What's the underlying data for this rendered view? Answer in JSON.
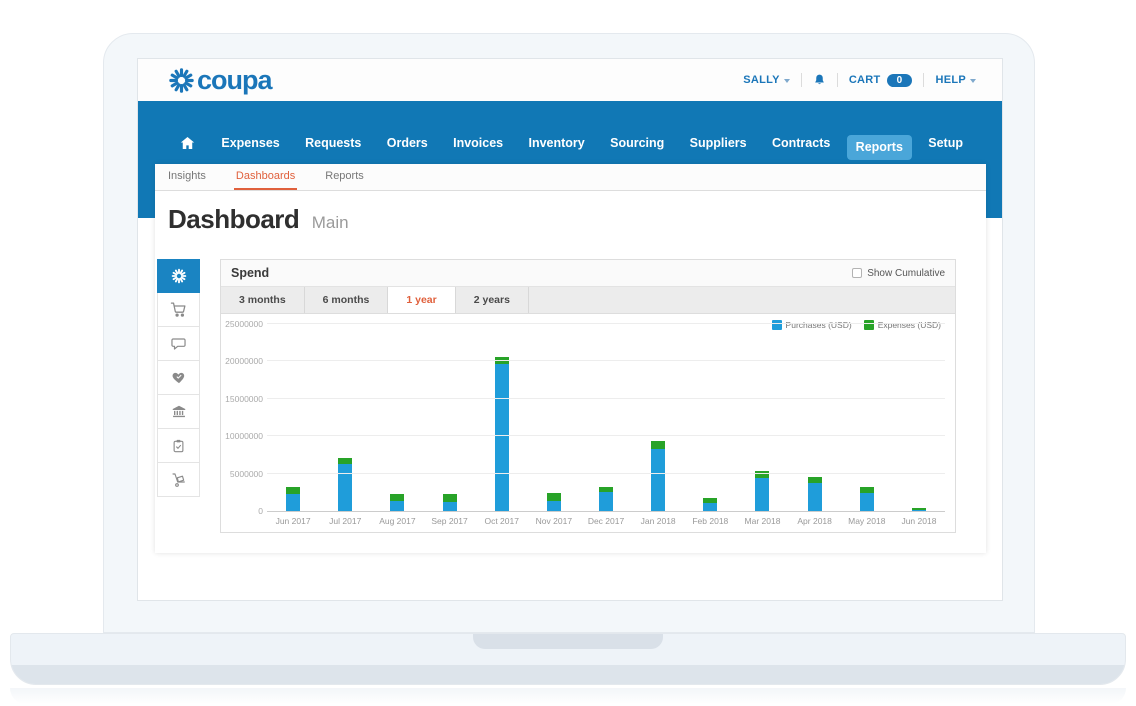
{
  "ui_colors": {
    "brand_blue": "#1b76b9",
    "nav_blue": "#1178b5",
    "nav_active_blue": "#4aa6d9",
    "accent_orange": "#e0603c"
  },
  "header": {
    "logo_text": "coupa",
    "user_label": "SALLY",
    "cart_label": "CART",
    "cart_count": "0",
    "help_label": "HELP"
  },
  "nav": {
    "items": [
      {
        "name": "home",
        "icon": "home-icon",
        "label": ""
      },
      {
        "label": "Expenses"
      },
      {
        "label": "Requests"
      },
      {
        "label": "Orders"
      },
      {
        "label": "Invoices"
      },
      {
        "label": "Inventory"
      },
      {
        "label": "Sourcing"
      },
      {
        "label": "Suppliers"
      },
      {
        "label": "Contracts"
      },
      {
        "label": "Reports",
        "active": true
      },
      {
        "label": "Setup"
      }
    ]
  },
  "subnav": {
    "items": [
      {
        "label": "Insights"
      },
      {
        "label": "Dashboards",
        "active": true
      },
      {
        "label": "Reports"
      }
    ]
  },
  "page": {
    "title": "Dashboard",
    "subtitle": "Main"
  },
  "sidebar": {
    "items": [
      {
        "icon": "sunburst-icon",
        "active": true
      },
      {
        "icon": "cart-icon"
      },
      {
        "icon": "speech-bubble-icon"
      },
      {
        "icon": "heart-icon"
      },
      {
        "icon": "bank-icon"
      },
      {
        "icon": "clipboard-check-icon"
      },
      {
        "icon": "hand-truck-icon"
      }
    ]
  },
  "panel": {
    "title": "Spend",
    "checkbox_label": "Show Cumulative",
    "checkbox_checked": false,
    "range_tabs": [
      {
        "label": "3 months"
      },
      {
        "label": "6 months"
      },
      {
        "label": "1 year",
        "active": true
      },
      {
        "label": "2 years"
      }
    ]
  },
  "chart_data": {
    "type": "bar",
    "stacked": true,
    "grid": true,
    "legend_position": "top-right",
    "title": "Spend",
    "xlabel": "",
    "ylabel": "",
    "ylim": [
      0,
      25000000
    ],
    "y_ticks": [
      0,
      5000000,
      10000000,
      15000000,
      20000000,
      25000000
    ],
    "y_tick_labels": [
      "0",
      "5000000",
      "10000000",
      "15000000",
      "20000000",
      "25000000"
    ],
    "categories": [
      "Jun 2017",
      "Jul 2017",
      "Aug 2017",
      "Sep 2017",
      "Oct 2017",
      "Nov 2017",
      "Dec 2017",
      "Jan 2018",
      "Feb 2018",
      "Mar 2018",
      "Apr 2018",
      "May 2018",
      "Jun 2018"
    ],
    "series": [
      {
        "name": "Purchases (USD)",
        "color": "#1f9dda",
        "values": [
          2300000,
          6300000,
          1400000,
          1250000,
          19600000,
          1350000,
          2550000,
          8300000,
          1050000,
          4400000,
          3800000,
          2400000,
          50000
        ]
      },
      {
        "name": "Expenses (USD)",
        "color": "#28a328",
        "values": [
          900000,
          800000,
          850000,
          1000000,
          1000000,
          1000000,
          600000,
          1100000,
          750000,
          900000,
          800000,
          800000,
          150000
        ]
      }
    ]
  }
}
